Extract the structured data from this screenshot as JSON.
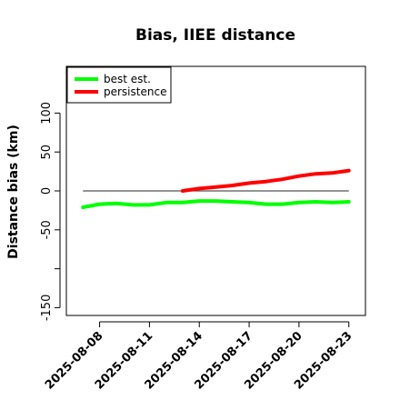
{
  "chart_data": {
    "type": "line",
    "title": "Bias, IIEE distance",
    "ylabel": "Distance bias (km)",
    "xlabel": "",
    "ylim": [
      -160,
      160
    ],
    "xlim": [
      "2025-08-06",
      "2025-08-24"
    ],
    "yticks": [
      -150,
      -50,
      0,
      50,
      100
    ],
    "ytick_labels": [
      "-150",
      "-50",
      "0",
      "50",
      "100"
    ],
    "yticks_unlabeled": [
      -100
    ],
    "xticks": [
      "2025-08-08",
      "2025-08-11",
      "2025-08-14",
      "2025-08-17",
      "2025-08-20",
      "2025-08-23"
    ],
    "reference_line": 0,
    "legend_position": "top-left",
    "series": [
      {
        "name": "best est.",
        "color": "#00ff00",
        "x": [
          "2025-08-07",
          "2025-08-08",
          "2025-08-09",
          "2025-08-10",
          "2025-08-11",
          "2025-08-12",
          "2025-08-13",
          "2025-08-14",
          "2025-08-15",
          "2025-08-16",
          "2025-08-17",
          "2025-08-18",
          "2025-08-19",
          "2025-08-20",
          "2025-08-21",
          "2025-08-22",
          "2025-08-23"
        ],
        "values": [
          -21,
          -17,
          -16,
          -18,
          -18,
          -15,
          -15,
          -13,
          -13,
          -14,
          -15,
          -17,
          -17,
          -15,
          -14,
          -15,
          -14
        ]
      },
      {
        "name": "persistence",
        "color": "#ff0000",
        "x": [
          "2025-08-13",
          "2025-08-14",
          "2025-08-15",
          "2025-08-16",
          "2025-08-17",
          "2025-08-18",
          "2025-08-19",
          "2025-08-20",
          "2025-08-21",
          "2025-08-22",
          "2025-08-23"
        ],
        "values": [
          0,
          3,
          5,
          7,
          10,
          12,
          15,
          19,
          22,
          23,
          26
        ]
      }
    ]
  }
}
